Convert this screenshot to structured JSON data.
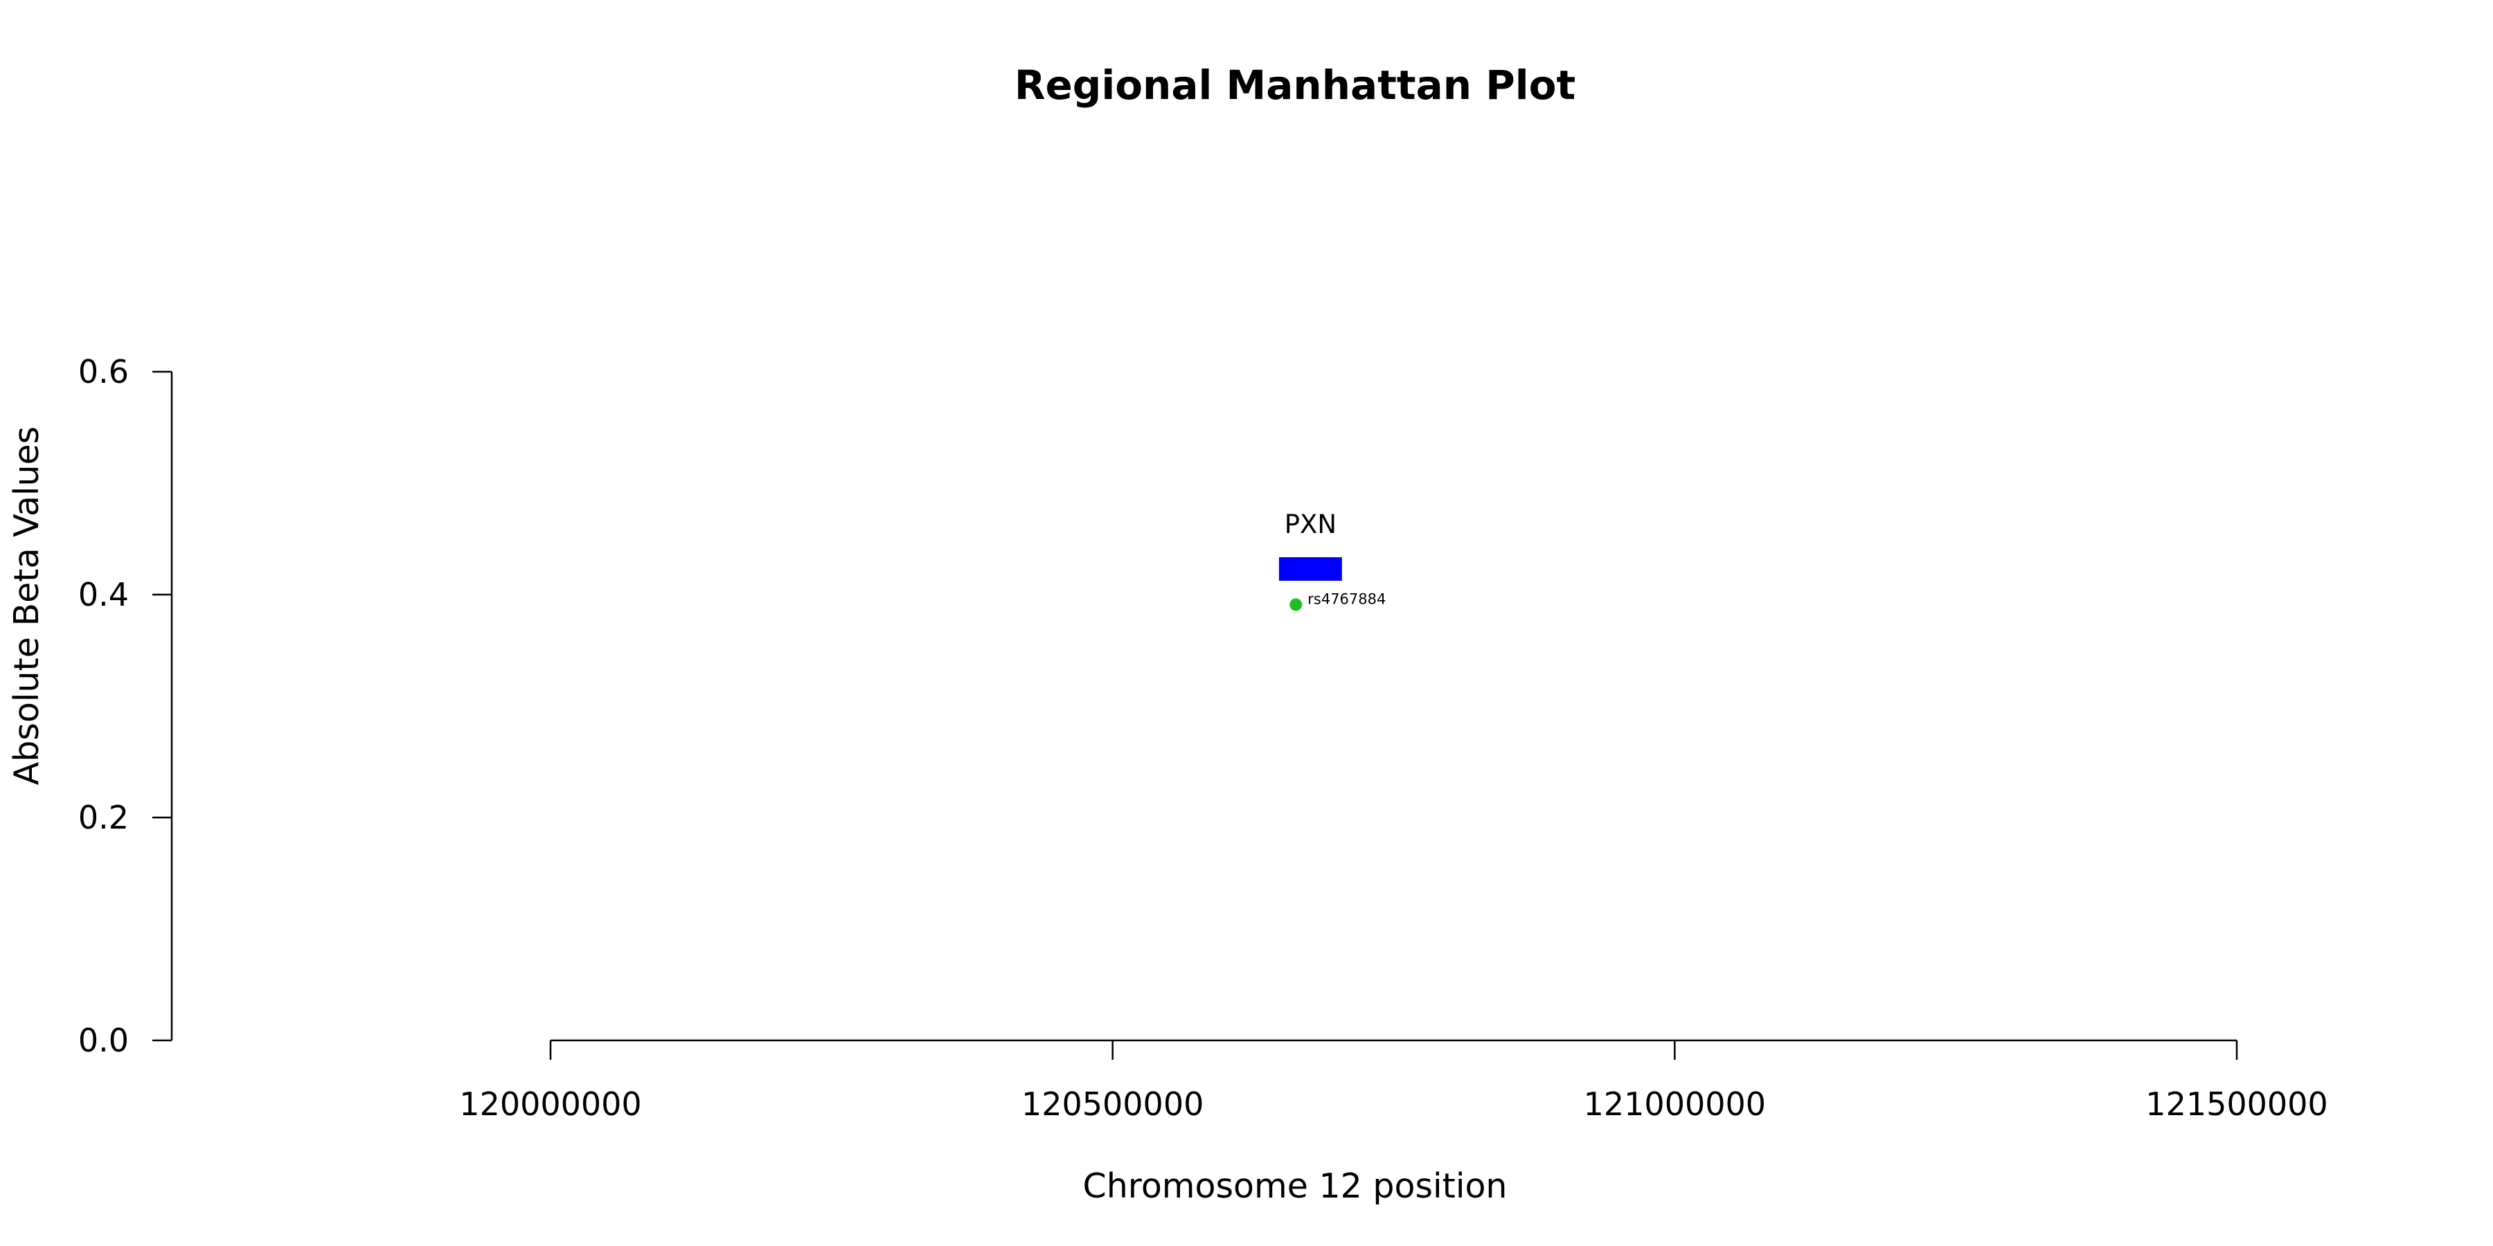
{
  "chart_data": {
    "type": "scatter",
    "title": "Regional Manhattan Plot",
    "xlabel": "Chromosome 12 position",
    "ylabel": "Absolute Beta Values",
    "xlim": [
      119663000,
      121663000
    ],
    "ylim": [
      0,
      0.6
    ],
    "x_ticks": [
      120000000,
      120500000,
      121000000,
      121500000
    ],
    "x_tick_labels": [
      "120000000",
      "120500000",
      "121000000",
      "121500000"
    ],
    "y_ticks": [
      0,
      0.2,
      0.4,
      0.6
    ],
    "y_tick_labels": [
      "0.0",
      "0.2",
      "0.4",
      "0.6"
    ],
    "grid": false,
    "points": [
      {
        "label": "rs4767884",
        "x": 120663000,
        "y": 0.391,
        "color": "#1fbf1f"
      }
    ],
    "genes": [
      {
        "label": "PXN",
        "start": 120648000,
        "end": 120704000,
        "y": 0.423,
        "color": "#0000ff"
      }
    ]
  }
}
